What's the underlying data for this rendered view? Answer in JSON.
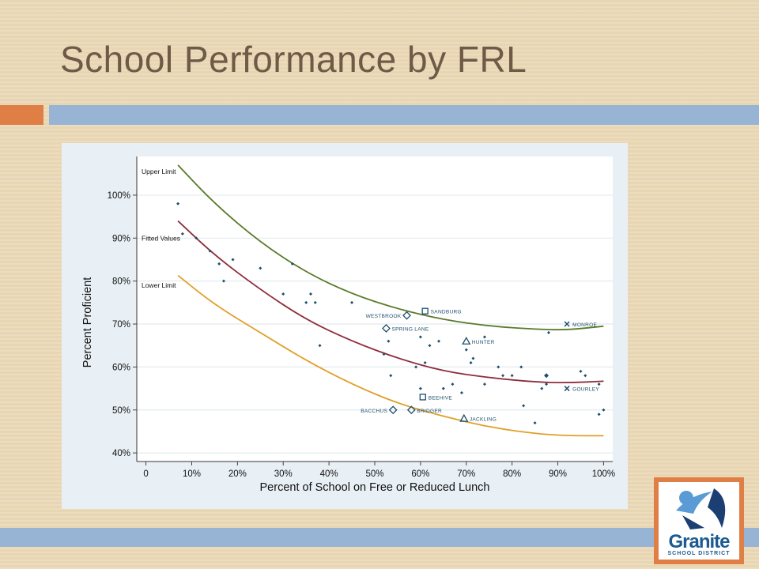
{
  "slide": {
    "title": "School Performance by FRL"
  },
  "logo": {
    "name": "Granite",
    "subtitle": "SCHOOL DISTRICT"
  },
  "colors": {
    "upper": "#5a7a2a",
    "fitted": "#8e2e3c",
    "lower": "#e0a02a",
    "points": "#1c4f6b",
    "accent_orange": "#e07f45",
    "accent_blue": "#97b4d4"
  },
  "chart_data": {
    "type": "scatter",
    "title": "",
    "xlabel": "Percent of School on Free or Reduced Lunch",
    "ylabel": "Percent Proficient",
    "xlim": [
      -0.02,
      1.02
    ],
    "ylim": [
      0.38,
      1.09
    ],
    "x_ticks": [
      0,
      0.1,
      0.2,
      0.3,
      0.4,
      0.5,
      0.6,
      0.7,
      0.8,
      0.9,
      1.0
    ],
    "x_tick_labels": [
      "0",
      "10%",
      "20%",
      "30%",
      "40%",
      "50%",
      "60%",
      "70%",
      "80%",
      "90%",
      "100%"
    ],
    "y_ticks": [
      0.4,
      0.5,
      0.6,
      0.7,
      0.8,
      0.9,
      1.0
    ],
    "y_tick_labels": [
      "40%",
      "50%",
      "60%",
      "70%",
      "80%",
      "90%",
      "100%"
    ],
    "grid": true,
    "curves": [
      {
        "name": "Upper Limit",
        "x": [
          0.07,
          0.15,
          0.25,
          0.35,
          0.45,
          0.55,
          0.65,
          0.75,
          0.85,
          0.92,
          1.0
        ],
        "y": [
          1.07,
          0.98,
          0.89,
          0.82,
          0.77,
          0.735,
          0.71,
          0.695,
          0.688,
          0.686,
          0.695
        ]
      },
      {
        "name": "Fitted Values",
        "x": [
          0.07,
          0.15,
          0.25,
          0.35,
          0.45,
          0.55,
          0.65,
          0.75,
          0.85,
          0.92,
          1.0
        ],
        "y": [
          0.94,
          0.86,
          0.78,
          0.71,
          0.66,
          0.62,
          0.59,
          0.575,
          0.565,
          0.563,
          0.567
        ]
      },
      {
        "name": "Lower Limit",
        "x": [
          0.07,
          0.15,
          0.25,
          0.35,
          0.45,
          0.55,
          0.65,
          0.75,
          0.85,
          0.92,
          1.0
        ],
        "y": [
          0.813,
          0.745,
          0.68,
          0.615,
          0.56,
          0.515,
          0.485,
          0.46,
          0.445,
          0.44,
          0.44
        ]
      }
    ],
    "points": [
      {
        "x": 0.07,
        "y": 0.98
      },
      {
        "x": 0.08,
        "y": 0.91
      },
      {
        "x": 0.11,
        "y": 0.9
      },
      {
        "x": 0.14,
        "y": 0.87
      },
      {
        "x": 0.16,
        "y": 0.84
      },
      {
        "x": 0.17,
        "y": 0.8
      },
      {
        "x": 0.19,
        "y": 0.85
      },
      {
        "x": 0.25,
        "y": 0.83
      },
      {
        "x": 0.3,
        "y": 0.77
      },
      {
        "x": 0.32,
        "y": 0.84
      },
      {
        "x": 0.35,
        "y": 0.75
      },
      {
        "x": 0.36,
        "y": 0.77
      },
      {
        "x": 0.37,
        "y": 0.75
      },
      {
        "x": 0.38,
        "y": 0.65
      },
      {
        "x": 0.45,
        "y": 0.75
      },
      {
        "x": 0.52,
        "y": 0.63
      },
      {
        "x": 0.53,
        "y": 0.66
      },
      {
        "x": 0.535,
        "y": 0.58
      },
      {
        "x": 0.59,
        "y": 0.6
      },
      {
        "x": 0.6,
        "y": 0.67
      },
      {
        "x": 0.6,
        "y": 0.55
      },
      {
        "x": 0.61,
        "y": 0.61
      },
      {
        "x": 0.62,
        "y": 0.65
      },
      {
        "x": 0.64,
        "y": 0.66
      },
      {
        "x": 0.65,
        "y": 0.55
      },
      {
        "x": 0.67,
        "y": 0.56
      },
      {
        "x": 0.69,
        "y": 0.54
      },
      {
        "x": 0.7,
        "y": 0.64
      },
      {
        "x": 0.71,
        "y": 0.61
      },
      {
        "x": 0.715,
        "y": 0.62
      },
      {
        "x": 0.74,
        "y": 0.67
      },
      {
        "x": 0.74,
        "y": 0.56
      },
      {
        "x": 0.77,
        "y": 0.6
      },
      {
        "x": 0.78,
        "y": 0.58
      },
      {
        "x": 0.8,
        "y": 0.58
      },
      {
        "x": 0.82,
        "y": 0.6
      },
      {
        "x": 0.825,
        "y": 0.51
      },
      {
        "x": 0.85,
        "y": 0.47
      },
      {
        "x": 0.865,
        "y": 0.55
      },
      {
        "x": 0.875,
        "y": 0.56
      },
      {
        "x": 0.88,
        "y": 0.68
      },
      {
        "x": 0.95,
        "y": 0.59
      },
      {
        "x": 0.96,
        "y": 0.58
      },
      {
        "x": 0.99,
        "y": 0.49
      },
      {
        "x": 1.0,
        "y": 0.5
      },
      {
        "x": 0.99,
        "y": 0.56
      }
    ],
    "labeled_points": [
      {
        "label": "SANDBURG",
        "x": 0.61,
        "y": 0.73,
        "marker": "square",
        "label_side": "right"
      },
      {
        "label": "WESTBROOK",
        "x": 0.57,
        "y": 0.72,
        "marker": "diamond",
        "label_side": "left"
      },
      {
        "label": "SPRING LANE",
        "x": 0.525,
        "y": 0.69,
        "marker": "diamond",
        "label_side": "right"
      },
      {
        "label": "HUNTER",
        "x": 0.7,
        "y": 0.66,
        "marker": "triangle",
        "label_side": "right"
      },
      {
        "label": "MONROE",
        "x": 0.92,
        "y": 0.7,
        "marker": "x",
        "label_side": "right"
      },
      {
        "label": "GOURLEY",
        "x": 0.92,
        "y": 0.55,
        "marker": "x",
        "label_side": "right"
      },
      {
        "label": "BEEHIVE",
        "x": 0.605,
        "y": 0.53,
        "marker": "square",
        "label_side": "right"
      },
      {
        "label": "BACCHUS",
        "x": 0.54,
        "y": 0.5,
        "marker": "diamond",
        "label_side": "left"
      },
      {
        "label": "BRIDGER",
        "x": 0.58,
        "y": 0.5,
        "marker": "diamond",
        "label_side": "right"
      },
      {
        "label": "JACKLING",
        "x": 0.695,
        "y": 0.48,
        "marker": "triangle",
        "label_side": "right"
      },
      {
        "label": "",
        "x": 0.875,
        "y": 0.58,
        "marker": "diamond-small",
        "label_side": "none"
      }
    ]
  }
}
